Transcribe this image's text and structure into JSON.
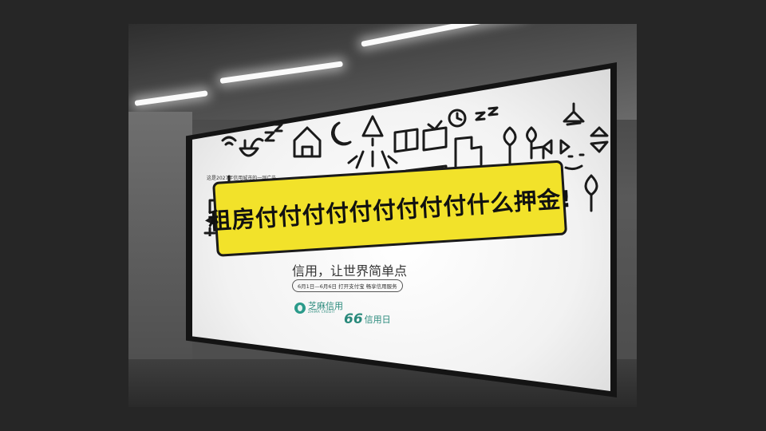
{
  "scene": "subway-billboard-photo",
  "billboard": {
    "fine_print": "这是2027年信用城市的一则广告",
    "headline": "租房付付付付付付付付付什么押金!",
    "slogan": "信用，让世界简单点",
    "date_line": "6月1日—6月6日  打开支付宝  畅享信用服务",
    "sesame_logo": {
      "name": "芝麻信用",
      "english": "ZHIMA CREDIT"
    },
    "credit_day_logo": {
      "number": "66",
      "name": "信用日"
    },
    "accent_color": "#f2e22a",
    "brand_color": "#2a8a7c"
  },
  "icons": [
    "sofa-icon",
    "lamp-icon",
    "house-icon",
    "tv-icon",
    "clock-icon",
    "tree-icon",
    "moon-icon",
    "sleep-zz-icon",
    "stairs-icon",
    "wifi-icon",
    "plant-icon",
    "arrow-icon"
  ]
}
